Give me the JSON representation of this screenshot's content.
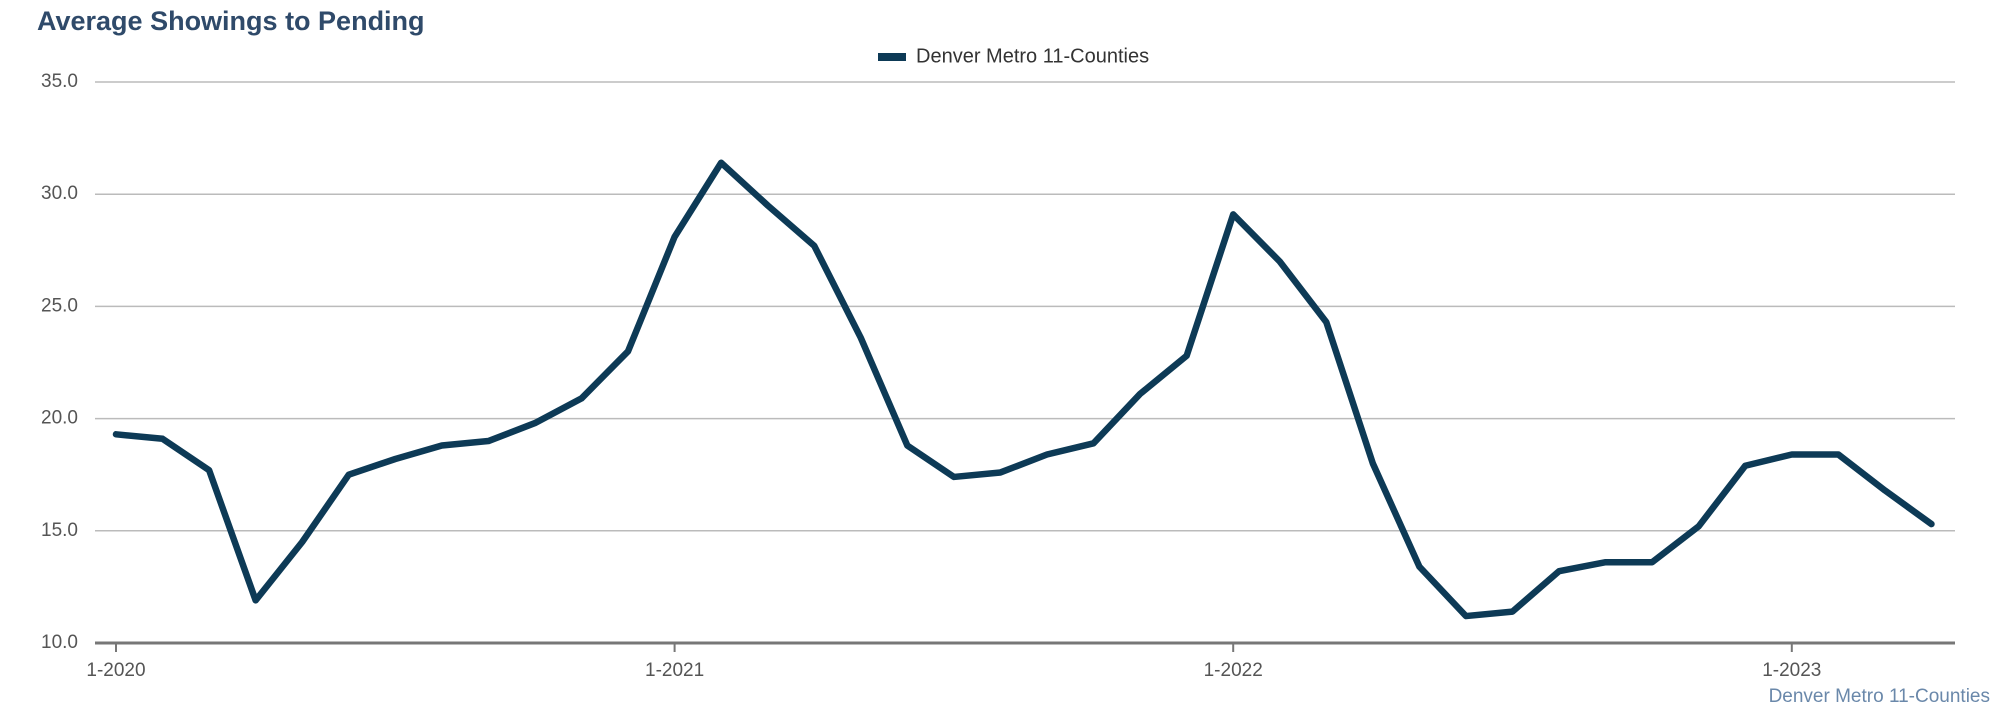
{
  "chart_data": {
    "type": "line",
    "title": "Average Showings to Pending",
    "categories": [
      "1-2020",
      null,
      null,
      null,
      null,
      null,
      null,
      null,
      null,
      null,
      null,
      null,
      "1-2021",
      null,
      null,
      null,
      null,
      null,
      null,
      null,
      null,
      null,
      null,
      null,
      "1-2022",
      null,
      null,
      null,
      null,
      null,
      null,
      null,
      null,
      null,
      null,
      null,
      "1-2023",
      null,
      null,
      null
    ],
    "series": [
      {
        "name": "Denver Metro 11-Counties",
        "color": "#0d3a56",
        "values": [
          19.3,
          19.1,
          17.7,
          11.9,
          14.5,
          17.5,
          18.2,
          18.8,
          19.0,
          19.8,
          20.9,
          23.0,
          28.1,
          31.4,
          29.5,
          27.7,
          23.6,
          18.8,
          17.4,
          17.6,
          18.4,
          18.9,
          21.1,
          22.8,
          29.1,
          27.0,
          24.3,
          18.0,
          13.4,
          11.2,
          11.4,
          13.2,
          13.6,
          13.6,
          15.2,
          17.9,
          18.4,
          18.4,
          16.8,
          15.3
        ]
      }
    ],
    "ylim": [
      10,
      35
    ],
    "yticks": [
      {
        "value": 10,
        "label": "10.0"
      },
      {
        "value": 15,
        "label": "15.0"
      },
      {
        "value": 20,
        "label": "20.0"
      },
      {
        "value": 25,
        "label": "25.0"
      },
      {
        "value": 30,
        "label": "30.0"
      },
      {
        "value": 35,
        "label": "35.0"
      }
    ],
    "grid": true,
    "legend": "top",
    "footer": "Denver Metro 11-Counties"
  }
}
